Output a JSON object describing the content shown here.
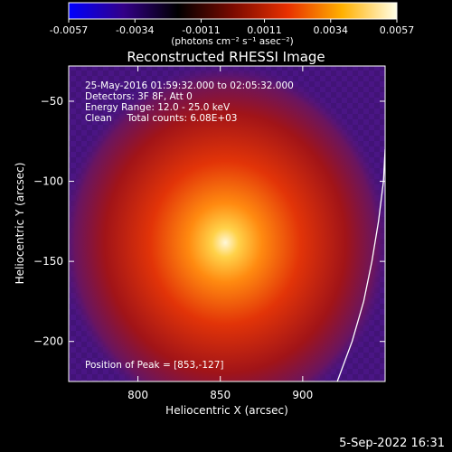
{
  "chart_data": {
    "type": "heatmap",
    "title": "Reconstructed RHESSI Image",
    "xlabel": "Heliocentric X (arcsec)",
    "ylabel": "Heliocentric Y (arcsec)",
    "xlim": [
      758,
      950
    ],
    "ylim": [
      -225,
      -28
    ],
    "xticks": [
      800,
      850,
      900
    ],
    "yticks": [
      -50,
      -100,
      -150,
      -200
    ],
    "colorbar": {
      "min": -0.0057,
      "max": 0.0057,
      "tick_values": [
        -0.0057,
        -0.0034,
        -0.0011,
        0.0011,
        0.0034,
        0.0057
      ],
      "tick_labels": [
        "-0.0057",
        "-0.0034",
        "-0.0011",
        "0.0011",
        "0.0034",
        "0.0057"
      ],
      "unit_label": "(photons cm⁻² s⁻¹ asec⁻²)",
      "colormap": [
        "#0000ff",
        "#330088",
        "#000000",
        "#7a0a00",
        "#e83000",
        "#ffb000",
        "#ffffe8"
      ]
    },
    "info_lines": [
      "25-May-2016 01:59:32.000 to 02:05:32.000",
      "Detectors: 3F 8F, Att 0",
      "Energy Range: 12.0 - 25.0 keV",
      "Clean     Total counts: 6.08E+03"
    ],
    "peak": {
      "x": 853,
      "y": -127
    },
    "peak_label": "Position of Peak = [853,-127]",
    "limb_curve": [
      [
        921,
        -225
      ],
      [
        930,
        -200
      ],
      [
        937,
        -175
      ],
      [
        942,
        -150
      ],
      [
        946,
        -125
      ],
      [
        949,
        -100
      ],
      [
        950,
        -80
      ]
    ],
    "background_color": "#4a1585"
  },
  "footer": {
    "timestamp": "5-Sep-2022 16:31"
  }
}
